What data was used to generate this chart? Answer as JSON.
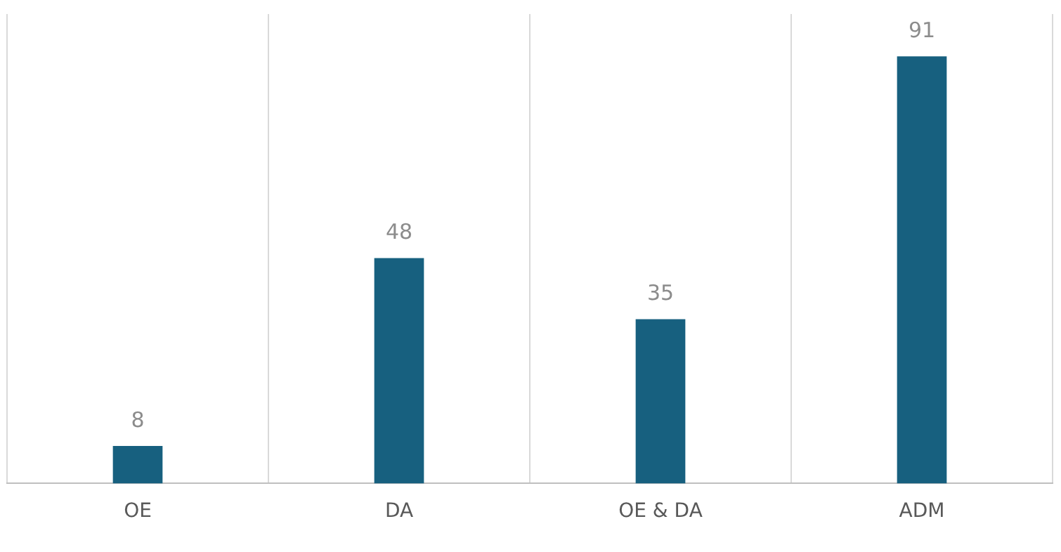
{
  "chart_data": {
    "type": "bar",
    "categories": [
      "OE",
      "DA",
      "OE & DA",
      "ADM"
    ],
    "values": [
      8,
      48,
      35,
      91
    ],
    "color": "#17607f",
    "data_labels": true,
    "grid": "x",
    "legend": false
  }
}
